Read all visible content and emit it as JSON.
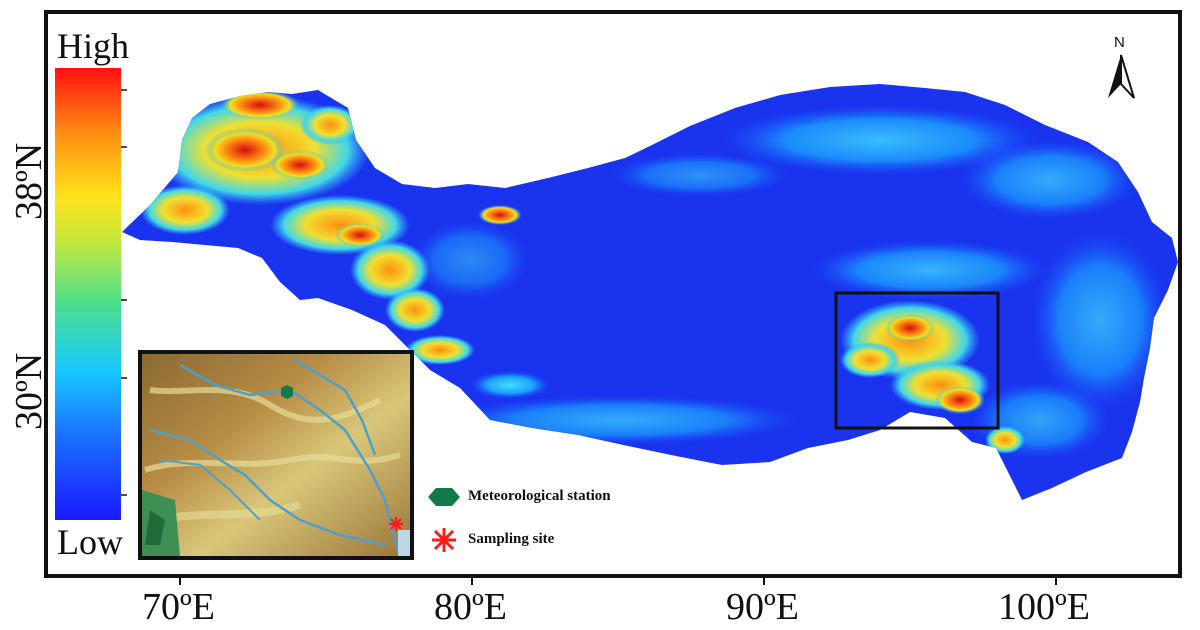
{
  "colorbar": {
    "high_label": "High",
    "low_label": "Low"
  },
  "axes": {
    "lon_ticks": [
      "70ºE",
      "80ºE",
      "90ºE",
      "100ºE"
    ],
    "lat_ticks": [
      "38ºN",
      "30ºN"
    ]
  },
  "north_arrow": {
    "label": "N",
    "icon": "north-arrow-icon"
  },
  "legend": [
    {
      "label": "Meteorological station",
      "icon": "green-hexagon-icon",
      "color": "#127a4a"
    },
    {
      "label": "Sampling site",
      "icon": "red-asterisk-icon",
      "color": "#ff1a1a"
    }
  ],
  "colors": {
    "low": "#1a2cff",
    "high": "#ff0000",
    "frame": "#111111",
    "inset_river": "#4fa0c8"
  }
}
